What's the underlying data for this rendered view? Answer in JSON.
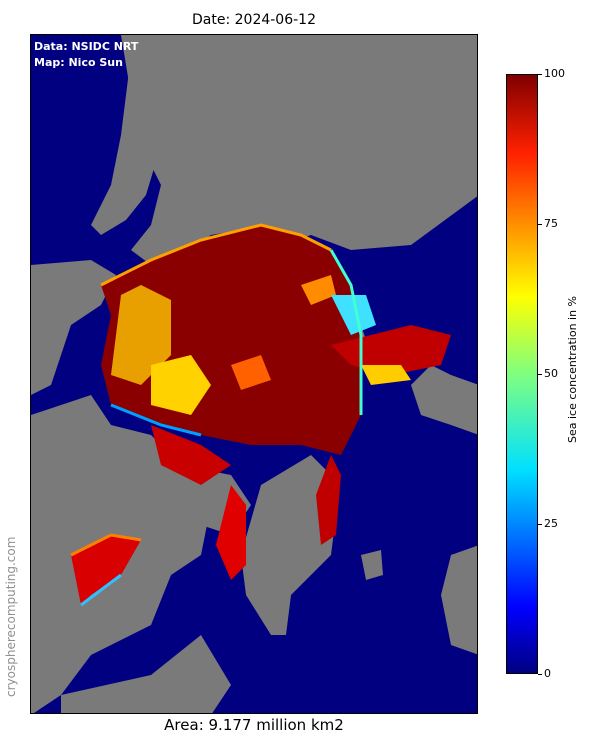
{
  "title": "Date: 2024-06-12",
  "credits": {
    "data": "Data: NSIDC NRT",
    "map": "Map: Nico Sun"
  },
  "footer": {
    "area": "Area: 9.177 million km2"
  },
  "watermark": "cryospherecomputing.com",
  "colorbar": {
    "label": "Sea ice concentration in %",
    "ticks": [
      "0",
      "25",
      "50",
      "75",
      "100"
    ],
    "range": [
      0,
      100
    ],
    "colormap": "jet"
  },
  "colors": {
    "land": "#7a7a7a",
    "open_water": "#000080",
    "ice_high": "#800000"
  }
}
